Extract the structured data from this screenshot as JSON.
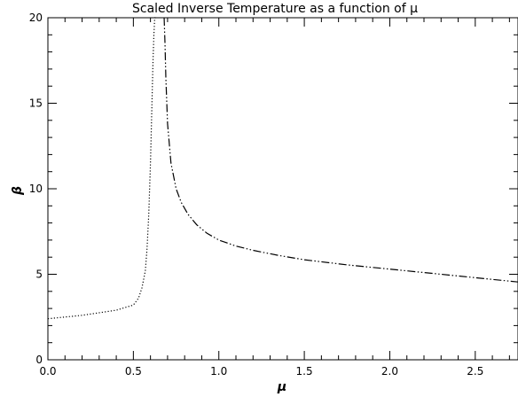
{
  "chart_data": {
    "type": "line",
    "title": "Scaled Inverse Temperature as a function of μ",
    "xlabel": "μ",
    "ylabel": "β",
    "xlim": [
      0,
      2.75
    ],
    "ylim": [
      0,
      20
    ],
    "x_ticks": [
      0.0,
      0.5,
      1.0,
      1.5,
      2.0,
      2.5
    ],
    "x_tick_labels": [
      "0.0",
      "0.5",
      "1.0",
      "1.5",
      "2.0",
      "2.5"
    ],
    "y_ticks": [
      0,
      5,
      10,
      15,
      20
    ],
    "y_tick_labels": [
      "0",
      "5",
      "10",
      "15",
      "20"
    ],
    "grid": false,
    "series": [
      {
        "line_style": "dotted",
        "x": [
          0.0,
          0.1,
          0.2,
          0.3,
          0.4,
          0.45,
          0.5,
          0.53,
          0.55,
          0.57,
          0.58,
          0.59,
          0.6,
          0.605,
          0.61,
          0.615,
          0.62,
          0.625,
          0.63
        ],
        "y": [
          2.4,
          2.5,
          2.6,
          2.75,
          2.9,
          3.05,
          3.2,
          3.6,
          4.2,
          5.2,
          6.5,
          8.5,
          11.5,
          13.5,
          15.5,
          17.5,
          19.0,
          20.0,
          20.0
        ]
      },
      {
        "line_style": "dash-dot-dot",
        "x": [
          0.68,
          0.685,
          0.69,
          0.7,
          0.72,
          0.75,
          0.78,
          0.82,
          0.87,
          0.93,
          1.0,
          1.1,
          1.2,
          1.35,
          1.5,
          1.75,
          2.0,
          2.25,
          2.5,
          2.75
        ],
        "y": [
          20.0,
          18.5,
          16.5,
          13.8,
          11.5,
          10.0,
          9.2,
          8.5,
          7.9,
          7.4,
          7.0,
          6.65,
          6.4,
          6.1,
          5.85,
          5.55,
          5.3,
          5.05,
          4.8,
          4.55
        ]
      }
    ]
  }
}
